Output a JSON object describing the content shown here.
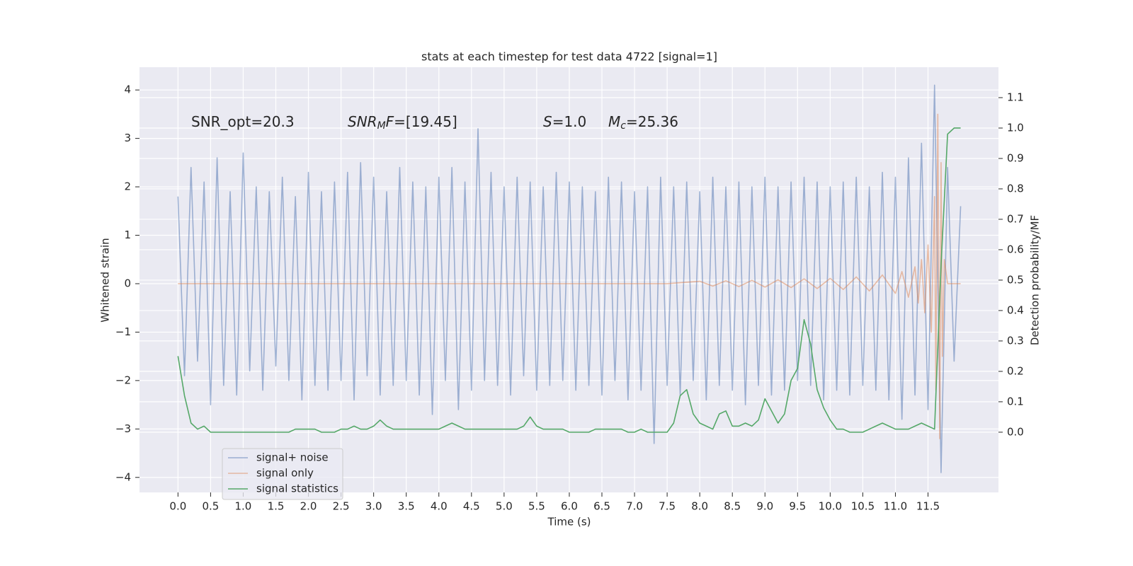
{
  "chart_data": {
    "type": "line",
    "title": "stats at each timestep for test data 4722 [signal=1]",
    "xlabel": "Time (s)",
    "ylabel": "Whitened strain",
    "y2label": "Detection probability/MF",
    "annotations": [
      [
        {
          "text": "SNR_opt=20.3"
        }
      ],
      [
        {
          "text": "SNR",
          "italic": true
        },
        {
          "text": "M",
          "italic": true,
          "sub": true
        },
        {
          "text": "F",
          "italic": true
        },
        {
          "text": "=[19.45]"
        }
      ],
      [
        {
          "text": "S",
          "italic": true
        },
        {
          "text": "=1.0"
        }
      ],
      [
        {
          "text": "M",
          "italic": true
        },
        {
          "text": "c",
          "italic": true,
          "sub": true
        },
        {
          "text": "=25.36"
        }
      ]
    ],
    "grid": true,
    "legend": "lower left",
    "xlim": [
      -0.59,
      12.58
    ],
    "ylim": [
      -4.31,
      4.47
    ],
    "y2lim": [
      -0.198,
      1.2
    ],
    "xticks": [
      {
        "value": 0,
        "label": "0.0"
      },
      {
        "value": 0.5,
        "label": "0.5"
      },
      {
        "value": 1,
        "label": "1.0"
      },
      {
        "value": 1.5,
        "label": "1.5"
      },
      {
        "value": 2,
        "label": "2.0"
      },
      {
        "value": 2.5,
        "label": "2.5"
      },
      {
        "value": 3,
        "label": "3.0"
      },
      {
        "value": 3.5,
        "label": "3.5"
      },
      {
        "value": 4,
        "label": "4.0"
      },
      {
        "value": 4.5,
        "label": "4.5"
      },
      {
        "value": 5,
        "label": "5.0"
      },
      {
        "value": 5.5,
        "label": "5.5"
      },
      {
        "value": 6,
        "label": "6.0"
      },
      {
        "value": 6.5,
        "label": "6.5"
      },
      {
        "value": 7,
        "label": "7.0"
      },
      {
        "value": 7.5,
        "label": "7.5"
      },
      {
        "value": 8,
        "label": "8.0"
      },
      {
        "value": 8.5,
        "label": "8.5"
      },
      {
        "value": 9,
        "label": "9.0"
      },
      {
        "value": 9.5,
        "label": "9.5"
      },
      {
        "value": 10,
        "label": "10.0"
      },
      {
        "value": 10.5,
        "label": "10.5"
      },
      {
        "value": 11,
        "label": "11.0"
      },
      {
        "value": 11.5,
        "label": "11.5"
      }
    ],
    "yticks": [
      {
        "value": -4,
        "label": "−4"
      },
      {
        "value": -3,
        "label": "−3"
      },
      {
        "value": -2,
        "label": "−2"
      },
      {
        "value": -1,
        "label": "−1"
      },
      0,
      1,
      2,
      3,
      4
    ],
    "y2ticks": [
      {
        "value": 0,
        "label": "0.0"
      },
      {
        "value": 0.1,
        "label": "0.1"
      },
      {
        "value": 0.2,
        "label": "0.2"
      },
      {
        "value": 0.3,
        "label": "0.3"
      },
      {
        "value": 0.4,
        "label": "0.4"
      },
      {
        "value": 0.5,
        "label": "0.5"
      },
      {
        "value": 0.6,
        "label": "0.6"
      },
      {
        "value": 0.7,
        "label": "0.7"
      },
      {
        "value": 0.8,
        "label": "0.8"
      },
      {
        "value": 0.9,
        "label": "0.9"
      },
      {
        "value": 1,
        "label": "1.0"
      },
      {
        "value": 1.1,
        "label": "1.1"
      }
    ],
    "x": [
      0,
      0.1,
      0.2,
      0.3,
      0.4,
      0.5,
      0.6,
      0.7,
      0.8,
      0.9,
      1,
      1.1,
      1.2,
      1.3,
      1.4,
      1.5,
      1.6,
      1.7,
      1.8,
      1.9,
      2,
      2.1,
      2.2,
      2.3,
      2.4,
      2.5,
      2.6,
      2.7,
      2.8,
      2.9,
      3,
      3.1,
      3.2,
      3.3,
      3.4,
      3.5,
      3.6,
      3.7,
      3.8,
      3.9,
      4,
      4.1,
      4.2,
      4.3,
      4.4,
      4.5,
      4.6,
      4.7,
      4.8,
      4.9,
      5,
      5.1,
      5.2,
      5.3,
      5.4,
      5.5,
      5.6,
      5.7,
      5.8,
      5.9,
      6,
      6.1,
      6.2,
      6.3,
      6.4,
      6.5,
      6.6,
      6.7,
      6.8,
      6.9,
      7,
      7.1,
      7.2,
      7.3,
      7.4,
      7.5,
      7.6,
      7.7,
      7.8,
      7.9,
      8,
      8.1,
      8.2,
      8.3,
      8.4,
      8.5,
      8.6,
      8.7,
      8.8,
      8.9,
      9,
      9.1,
      9.2,
      9.3,
      9.4,
      9.5,
      9.6,
      9.7,
      9.8,
      9.9,
      10,
      10.1,
      10.2,
      10.3,
      10.4,
      10.5,
      10.6,
      10.7,
      10.8,
      10.9,
      11,
      11.1,
      11.2,
      11.3,
      11.4,
      11.5,
      11.6,
      11.7,
      11.8,
      11.9,
      12
    ],
    "series": [
      {
        "name": "signal+ noise",
        "color": "#4c72b0",
        "opacity": 0.5,
        "values": [
          1.8,
          -1.9,
          2.4,
          -1.6,
          2.1,
          -2.5,
          2.6,
          -2.1,
          1.9,
          -2.3,
          2.7,
          -1.8,
          2.0,
          -2.2,
          1.9,
          -1.7,
          2.2,
          -2.0,
          1.8,
          -2.4,
          2.3,
          -2.1,
          1.9,
          -2.2,
          2.1,
          -2.0,
          2.3,
          -2.4,
          2.5,
          -1.9,
          2.2,
          -2.3,
          1.9,
          -2.1,
          2.4,
          -2.0,
          2.1,
          -2.3,
          2.0,
          -2.7,
          2.2,
          -2.0,
          2.4,
          -2.6,
          2.1,
          -2.2,
          3.2,
          -2.0,
          2.3,
          -2.1,
          2.0,
          -2.3,
          2.2,
          -1.9,
          2.1,
          -2.2,
          2.0,
          -2.1,
          2.3,
          -2.0,
          2.1,
          -2.2,
          2.0,
          -2.1,
          1.9,
          -2.3,
          2.2,
          -2.0,
          2.1,
          -2.4,
          1.9,
          -2.2,
          2.0,
          -3.3,
          2.2,
          -2.1,
          2.0,
          -2.3,
          2.1,
          -2.0,
          1.9,
          -2.4,
          2.2,
          -2.1,
          2.0,
          -2.2,
          2.1,
          -2.5,
          2.0,
          -2.1,
          2.2,
          -2.3,
          2.0,
          -2.2,
          2.1,
          -2.0,
          2.2,
          -2.1,
          2.1,
          -2.4,
          2.0,
          -2.2,
          2.1,
          -2.3,
          2.2,
          -2.1,
          2.0,
          -2.2,
          2.3,
          -2.4,
          2.2,
          -2.8,
          2.6,
          -2.3,
          2.9,
          -2.6,
          4.1,
          -3.9,
          2.4,
          -1.6,
          1.6
        ]
      },
      {
        "name": "signal only",
        "color": "#dd8452",
        "opacity": 0.5,
        "x": [
          0,
          7.5,
          8.0,
          8.2,
          8.4,
          8.6,
          8.8,
          9.0,
          9.2,
          9.4,
          9.6,
          9.8,
          10.0,
          10.2,
          10.4,
          10.6,
          10.8,
          11.0,
          11.1,
          11.2,
          11.3,
          11.35,
          11.4,
          11.45,
          11.5,
          11.55,
          11.6,
          11.62,
          11.65,
          11.68,
          11.7,
          11.72,
          11.75,
          11.8,
          12.0
        ],
        "values": [
          0,
          0,
          0.05,
          -0.05,
          0.06,
          -0.06,
          0.07,
          -0.07,
          0.08,
          -0.08,
          0.1,
          -0.1,
          0.11,
          -0.12,
          0.14,
          -0.15,
          0.18,
          -0.2,
          0.25,
          -0.28,
          0.35,
          -0.4,
          0.5,
          -0.6,
          0.8,
          -1.0,
          1.8,
          -2.2,
          3.5,
          -3.2,
          2.5,
          -1.5,
          0.5,
          0,
          0
        ]
      },
      {
        "name": "signal statistics",
        "color": "#55a868",
        "opacity": 1,
        "axis": "y2",
        "values": [
          0.25,
          0.12,
          0.03,
          0.01,
          0.02,
          0.0,
          0.0,
          0.0,
          0.0,
          0.0,
          0.0,
          0.0,
          0.0,
          0.0,
          0.0,
          0.0,
          0.0,
          0.0,
          0.01,
          0.01,
          0.01,
          0.01,
          0.0,
          0.0,
          0.0,
          0.01,
          0.01,
          0.02,
          0.01,
          0.01,
          0.02,
          0.04,
          0.02,
          0.01,
          0.01,
          0.01,
          0.01,
          0.01,
          0.01,
          0.01,
          0.01,
          0.02,
          0.03,
          0.02,
          0.01,
          0.01,
          0.01,
          0.01,
          0.01,
          0.01,
          0.01,
          0.01,
          0.01,
          0.02,
          0.05,
          0.02,
          0.01,
          0.01,
          0.01,
          0.01,
          0.0,
          0.0,
          0.0,
          0.0,
          0.01,
          0.01,
          0.01,
          0.01,
          0.01,
          0.0,
          0.0,
          0.01,
          0.0,
          0.0,
          0.0,
          0.0,
          0.03,
          0.12,
          0.14,
          0.06,
          0.03,
          0.02,
          0.01,
          0.06,
          0.07,
          0.02,
          0.02,
          0.03,
          0.02,
          0.04,
          0.11,
          0.07,
          0.03,
          0.06,
          0.17,
          0.21,
          0.37,
          0.29,
          0.14,
          0.08,
          0.04,
          0.01,
          0.01,
          0.0,
          0.0,
          0.0,
          0.01,
          0.02,
          0.03,
          0.02,
          0.01,
          0.01,
          0.01,
          0.02,
          0.03,
          0.02,
          0.01,
          0.55,
          0.98,
          1.0,
          1.0
        ]
      }
    ]
  }
}
